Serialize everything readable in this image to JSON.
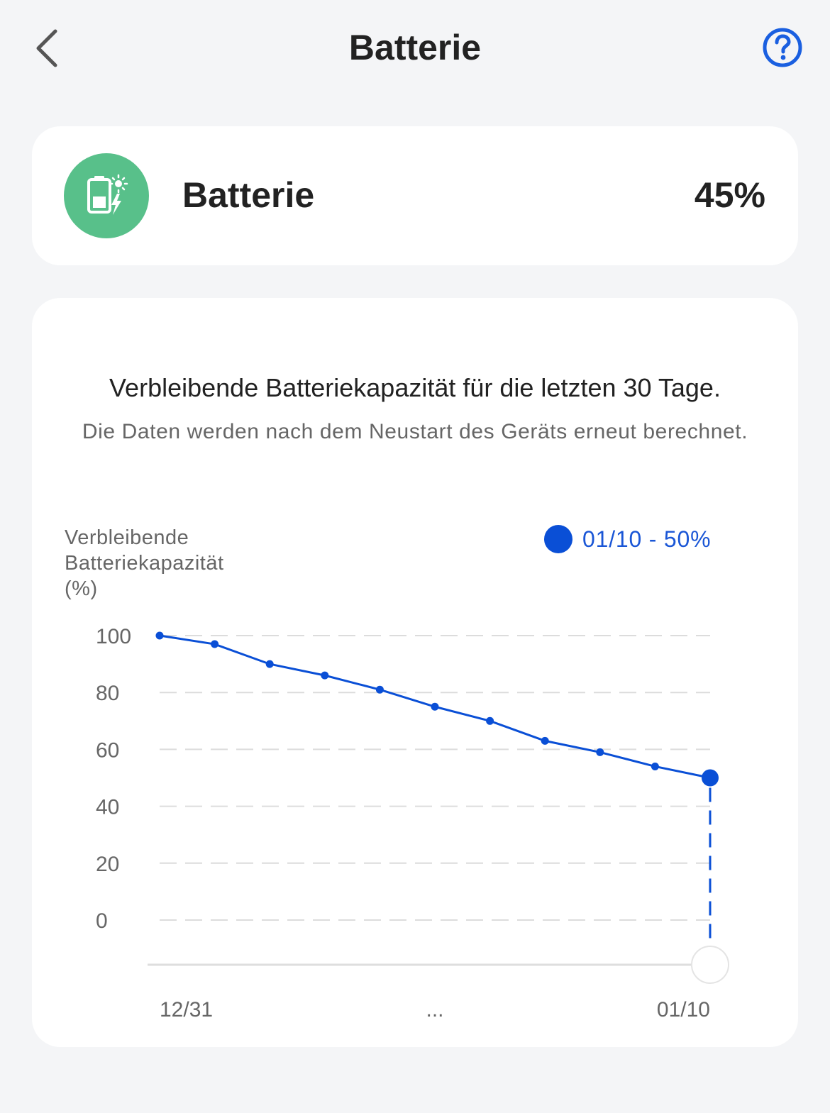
{
  "nav": {
    "title": "Batterie",
    "back_icon": "chevron-left-icon",
    "help_icon": "question-circle-icon"
  },
  "status": {
    "label": "Batterie",
    "value": "45%",
    "icon": "battery-solar-icon",
    "icon_bg_color": "#58c08a"
  },
  "chart_card": {
    "title": "Verbleibende Batteriekapazität für die letzten 30 Tage.",
    "subtitle": "Die Daten werden nach dem Neustart des Geräts erneut berechnet.",
    "ylabel_lines": [
      "Verbleibende",
      "Batteriekapazität",
      "(%)"
    ],
    "legend": "01/10 - 50%"
  },
  "chart_data": {
    "type": "line",
    "ylabel": "Verbleibende Batteriekapazität (%)",
    "ylim": [
      0,
      100
    ],
    "yticks": [
      100,
      80,
      60,
      40,
      20,
      0
    ],
    "x_tick_labels": [
      "12/31",
      "...",
      "01/10"
    ],
    "series": [
      {
        "values": [
          100,
          97,
          90,
          86,
          81,
          75,
          70,
          63,
          59,
          54,
          50
        ]
      }
    ],
    "highlight": {
      "label": "01/10",
      "value": 50
    },
    "grid": true,
    "line_color": "#0a4fd6"
  }
}
